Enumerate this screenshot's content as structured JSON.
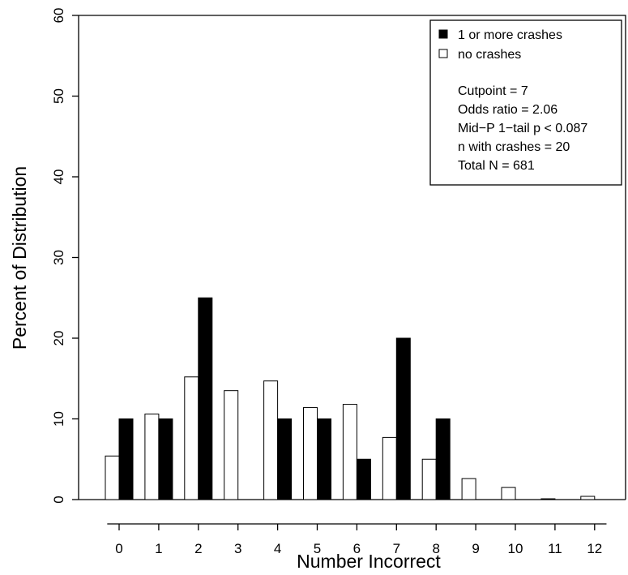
{
  "chart_data": {
    "type": "bar",
    "title": "",
    "xlabel": "Number Incorrect",
    "ylabel": "Percent of Distribution",
    "categories": [
      "0",
      "1",
      "2",
      "3",
      "4",
      "5",
      "6",
      "7",
      "8",
      "9",
      "10",
      "11",
      "12"
    ],
    "ylim": [
      0,
      60
    ],
    "yticks": [
      0,
      10,
      20,
      30,
      40,
      50,
      60
    ],
    "legend_position": "top-right",
    "series": [
      {
        "name": "no crashes",
        "color": "#ffffff",
        "values": [
          5.4,
          10.6,
          15.2,
          13.5,
          14.7,
          11.4,
          11.8,
          7.7,
          5.0,
          2.6,
          1.5,
          0.1,
          0.4
        ]
      },
      {
        "name": "1 or more  crashes",
        "color": "#000000",
        "values": [
          10,
          10,
          25,
          0,
          10,
          10,
          5,
          20,
          10,
          0,
          0,
          0,
          0
        ]
      }
    ],
    "legend": {
      "entries": [
        "1 or more  crashes",
        "no crashes"
      ],
      "stats": [
        "Cutpoint =  7",
        "Odds ratio =  2.06",
        "Mid−P 1−tail p <  0.087",
        "n with  crashes  =  20",
        "Total N =  681"
      ]
    }
  }
}
